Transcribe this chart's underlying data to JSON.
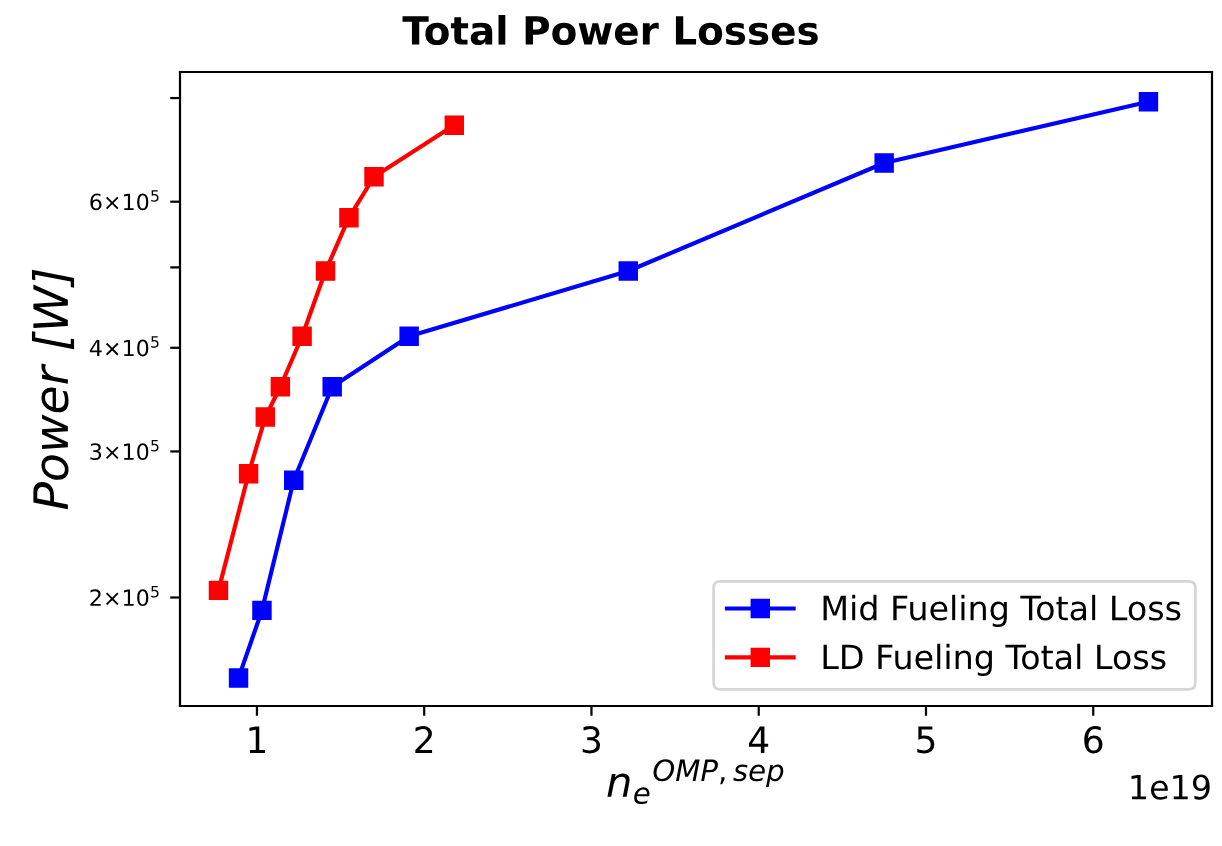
{
  "chart_data": {
    "type": "line",
    "title": "Total Power Losses",
    "xlabel": "n$_{e}$$^{OMP,sep}$",
    "ylabel": "Power [W]",
    "series": [
      {
        "name": "Mid Fueling Total Loss",
        "color": "#0000ff",
        "x": [
          0.89,
          1.03,
          1.22,
          1.45,
          1.91,
          3.22,
          4.75,
          6.33
        ],
        "values": [
          160000,
          193000,
          277000,
          359000,
          413000,
          495000,
          668000,
          792000
        ]
      },
      {
        "name": "LD Fueling Total Loss",
        "color": "#ff0000",
        "x": [
          0.77,
          0.95,
          1.05,
          1.14,
          1.27,
          1.41,
          1.55,
          1.7,
          2.18
        ],
        "values": [
          204000,
          282000,
          330000,
          359000,
          413000,
          495000,
          574000,
          643000,
          742000
        ]
      }
    ],
    "log": "y",
    "xlim": [
      0.54,
      6.71
    ],
    "xticks": [
      1,
      2,
      3,
      4,
      5,
      6
    ],
    "ylim": [
      148000,
      860000
    ],
    "yticks": [
      {
        "value": 200000,
        "label": "2×10$^{5}$"
      },
      {
        "value": 300000,
        "label": "3×10$^{5}$"
      },
      {
        "value": 400000,
        "label": "4×10$^{5}$"
      },
      {
        "value": 500000,
        "label": null
      },
      {
        "value": 600000,
        "label": "6×10$^{5}$"
      },
      {
        "value": 800000,
        "label": null
      }
    ],
    "annotations": [
      "1e19"
    ],
    "marker": "square",
    "line_style": "solid",
    "legend": "bottom right",
    "grid": false
  }
}
